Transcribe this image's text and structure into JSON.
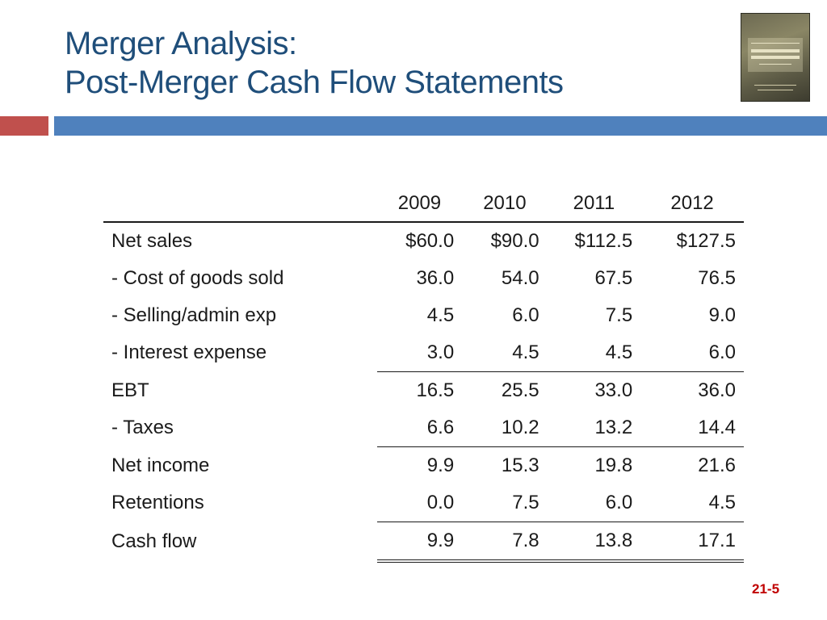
{
  "title": {
    "line1": "Merger Analysis:",
    "line2": "Post-Merger Cash Flow Statements"
  },
  "book_cover": {
    "icon": "book-cover-icon",
    "text": "Essentials of Financial Management"
  },
  "colors": {
    "title": "#1f4e7a",
    "accent_red": "#c0504d",
    "accent_blue": "#4f81bd",
    "slide_number": "#c00000"
  },
  "table": {
    "years": [
      "2009",
      "2010",
      "2011",
      "2012"
    ],
    "rows": [
      {
        "label": "Net sales",
        "values": [
          "$60.0",
          "$90.0",
          "$112.5",
          "$127.5"
        ]
      },
      {
        "label": "- Cost of goods sold",
        "values": [
          "36.0",
          "54.0",
          "67.5",
          "76.5"
        ]
      },
      {
        "label": "- Selling/admin exp",
        "values": [
          "4.5",
          "6.0",
          "7.5",
          "9.0"
        ]
      },
      {
        "label": "- Interest expense",
        "values": [
          "3.0",
          "4.5",
          "4.5",
          "6.0"
        ]
      },
      {
        "label": "EBT",
        "values": [
          "16.5",
          "25.5",
          "33.0",
          "36.0"
        ]
      },
      {
        "label": "- Taxes",
        "values": [
          "6.6",
          "10.2",
          "13.2",
          "14.4"
        ]
      },
      {
        "label": "Net income",
        "values": [
          "9.9",
          "15.3",
          "19.8",
          "21.6"
        ]
      },
      {
        "label": "Retentions",
        "values": [
          "0.0",
          "7.5",
          "6.0",
          "4.5"
        ]
      },
      {
        "label": "Cash flow",
        "values": [
          "9.9",
          "7.8",
          "13.8",
          "17.1"
        ]
      }
    ]
  },
  "slide_number": "21-5"
}
